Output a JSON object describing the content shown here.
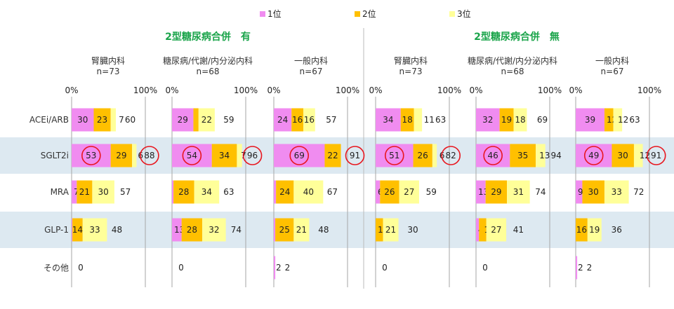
{
  "legend": [
    {
      "label": "1位",
      "color": "#f08cf0"
    },
    {
      "label": "2位",
      "color": "#ffc000"
    },
    {
      "label": "3位",
      "color": "#ffff99"
    }
  ],
  "groups": [
    {
      "title": "2型糖尿病合併　有"
    },
    {
      "title": "2型糖尿病合併　無"
    }
  ],
  "row_labels": [
    "ACEi/ARB",
    "SGLT2i",
    "MRA",
    "GLP-1",
    "その他"
  ],
  "axis_ticks": [
    "0%",
    "100%"
  ],
  "colors": {
    "rank1": "#f08cf0",
    "rank2": "#ffc000",
    "rank3": "#ffff99",
    "highlight_band": "#dde9f1",
    "circle": "#e8161e",
    "title_green": "#1aa44a"
  },
  "chart_data": [
    {
      "type": "bar",
      "stacked": true,
      "orientation": "horizontal",
      "title": "2型糖尿病合併　有",
      "subtitle": "腎臓内科",
      "n": "n=73",
      "categories": [
        "ACEi/ARB",
        "SGLT2i",
        "MRA",
        "GLP-1",
        "その他"
      ],
      "series": [
        {
          "name": "1位",
          "values": [
            30,
            53,
            7,
            1,
            0
          ]
        },
        {
          "name": "2位",
          "values": [
            23,
            29,
            21,
            14,
            0
          ]
        },
        {
          "name": "3位",
          "values": [
            7,
            6,
            30,
            33,
            0
          ]
        }
      ],
      "totals": [
        60,
        88,
        57,
        48,
        0
      ],
      "circled": [
        "1位:SGLT2i",
        "total:SGLT2i"
      ],
      "xlim": [
        0,
        100
      ]
    },
    {
      "type": "bar",
      "stacked": true,
      "orientation": "horizontal",
      "title": "2型糖尿病合併　有",
      "subtitle": "糖尿病/代謝/内分泌内科",
      "n": "n=68",
      "categories": [
        "ACEi/ARB",
        "SGLT2i",
        "MRA",
        "GLP-1",
        "その他"
      ],
      "series": [
        {
          "name": "1位",
          "values": [
            29,
            54,
            2,
            13,
            0
          ]
        },
        {
          "name": "2位",
          "values": [
            7,
            34,
            28,
            28,
            0
          ]
        },
        {
          "name": "3位",
          "values": [
            22,
            7,
            34,
            32,
            0
          ]
        }
      ],
      "totals": [
        59,
        96,
        63,
        74,
        0
      ],
      "circled": [
        "1位:SGLT2i",
        "total:SGLT2i"
      ],
      "xlim": [
        0,
        100
      ]
    },
    {
      "type": "bar",
      "stacked": true,
      "orientation": "horizontal",
      "title": "2型糖尿病合併　有",
      "subtitle": "一般内科",
      "n": "n=67",
      "categories": [
        "ACEi/ARB",
        "SGLT2i",
        "MRA",
        "GLP-1",
        "その他"
      ],
      "series": [
        {
          "name": "1位",
          "values": [
            24,
            69,
            3,
            2,
            2
          ]
        },
        {
          "name": "2位",
          "values": [
            16,
            22,
            24,
            25,
            0
          ]
        },
        {
          "name": "3位",
          "values": [
            16,
            0,
            40,
            21,
            0
          ]
        }
      ],
      "totals": [
        57,
        91,
        67,
        48,
        2
      ],
      "circled": [
        "1位:SGLT2i",
        "total:SGLT2i"
      ],
      "xlim": [
        0,
        100
      ]
    },
    {
      "type": "bar",
      "stacked": true,
      "orientation": "horizontal",
      "title": "2型糖尿病合併　無",
      "subtitle": "腎臓内科",
      "n": "n=73",
      "categories": [
        "ACEi/ARB",
        "SGLT2i",
        "MRA",
        "GLP-1",
        "その他"
      ],
      "series": [
        {
          "name": "1位",
          "values": [
            34,
            51,
            6,
            0,
            0
          ]
        },
        {
          "name": "2位",
          "values": [
            18,
            26,
            26,
            10,
            0
          ]
        },
        {
          "name": "3位",
          "values": [
            11,
            6,
            27,
            21,
            0
          ]
        }
      ],
      "totals": [
        63,
        82,
        59,
        30,
        0
      ],
      "circled": [
        "1位:SGLT2i",
        "total:SGLT2i"
      ],
      "xlim": [
        0,
        100
      ]
    },
    {
      "type": "bar",
      "stacked": true,
      "orientation": "horizontal",
      "title": "2型糖尿病合併　無",
      "subtitle": "糖尿病/代謝/内分泌内科",
      "n": "n=68",
      "categories": [
        "ACEi/ARB",
        "SGLT2i",
        "MRA",
        "GLP-1",
        "その他"
      ],
      "series": [
        {
          "name": "1位",
          "values": [
            32,
            46,
            13,
            4,
            0
          ]
        },
        {
          "name": "2位",
          "values": [
            19,
            35,
            29,
            10,
            0
          ]
        },
        {
          "name": "3位",
          "values": [
            18,
            13,
            31,
            27,
            0
          ]
        }
      ],
      "totals": [
        69,
        94,
        74,
        41,
        0
      ],
      "circled": [
        "1位:SGLT2i"
      ],
      "xlim": [
        0,
        100
      ]
    },
    {
      "type": "bar",
      "stacked": true,
      "orientation": "horizontal",
      "title": "2型糖尿病合併　無",
      "subtitle": "一般内科",
      "n": "n=67",
      "categories": [
        "ACEi/ARB",
        "SGLT2i",
        "MRA",
        "GLP-1",
        "その他"
      ],
      "series": [
        {
          "name": "1位",
          "values": [
            39,
            49,
            9,
            0,
            2
          ]
        },
        {
          "name": "2位",
          "values": [
            12,
            30,
            30,
            16,
            0
          ]
        },
        {
          "name": "3位",
          "values": [
            12,
            12,
            33,
            19,
            0
          ]
        }
      ],
      "totals": [
        63,
        91,
        72,
        36,
        2
      ],
      "circled": [
        "1位:SGLT2i",
        "total:SGLT2i"
      ],
      "xlim": [
        0,
        100
      ]
    }
  ]
}
